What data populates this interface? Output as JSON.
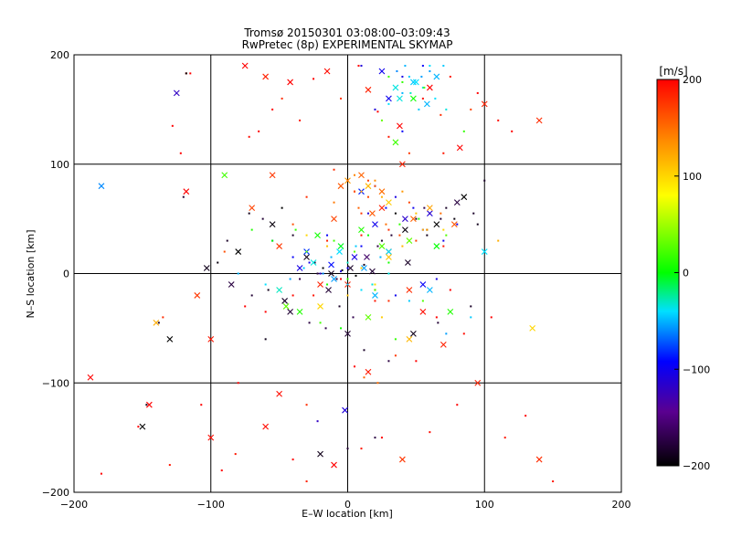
{
  "chart_data": {
    "type": "scatter",
    "title": "Tromsø 20150301 03:08:00–03:09:43",
    "subtitle": "RwPretec (8p) EXPERIMENTAL SKYMAP",
    "xlabel": "E–W location [km]",
    "ylabel": "N–S location [km]",
    "xlim": [
      -200,
      200
    ],
    "ylim": [
      -200,
      200
    ],
    "xticks": [
      "−200",
      "−100",
      "0",
      "100",
      "200"
    ],
    "yticks": [
      "−200",
      "−100",
      "0",
      "100",
      "200"
    ],
    "grid": true,
    "colorbar": {
      "label": "[m/s]",
      "range": [
        -200,
        200
      ],
      "ticks": [
        "200",
        "100",
        "0",
        "−100",
        "−200"
      ],
      "colormap": "rainbow: black(-200) → purple → blue(-100) → cyan → green(0) → yellow(100) → orange → red(200)",
      "stops": [
        "#000000",
        "#5a0090",
        "#0000ff",
        "#00e0ff",
        "#00ff00",
        "#ffff00",
        "#ff8c00",
        "#ff0000"
      ]
    },
    "markers": {
      "cross": "larger detections (x)",
      "dot": "small detections"
    },
    "series": [
      {
        "x": [
          -188,
          -180,
          -153,
          -145,
          -130,
          -122,
          -118,
          -115,
          -107,
          -100,
          -92,
          -82,
          -75,
          -72,
          -65,
          -60,
          -55,
          -48,
          -42,
          -35,
          -25,
          -15,
          -5,
          8,
          15,
          22,
          30,
          38,
          45,
          55,
          60,
          68,
          75,
          82,
          90,
          95,
          100,
          110,
          120,
          140,
          -128,
          -118,
          -60,
          -40,
          -30,
          -10,
          10,
          25,
          40,
          60,
          80,
          95,
          115,
          130,
          140,
          150,
          -80,
          -50,
          -30,
          5,
          15,
          35,
          50,
          70,
          105,
          -135,
          -100,
          -75,
          -40,
          -20,
          -5,
          20,
          45,
          65,
          85,
          -110,
          -60,
          -25,
          0,
          20,
          30,
          55,
          75,
          -90,
          -50,
          -15,
          10,
          30,
          50,
          70,
          -70,
          -30,
          5,
          25,
          45,
          60,
          -55,
          -10,
          15,
          40,
          70,
          -40,
          -10,
          10,
          30
        ],
        "y": [
          -95,
          -183,
          -140,
          -120,
          -175,
          110,
          75,
          183,
          -120,
          -150,
          -180,
          -165,
          190,
          125,
          130,
          180,
          150,
          160,
          175,
          140,
          178,
          185,
          160,
          190,
          168,
          148,
          125,
          135,
          110,
          160,
          170,
          145,
          180,
          115,
          150,
          165,
          155,
          140,
          130,
          140,
          135,
          183,
          -140,
          -170,
          -190,
          -175,
          -160,
          -150,
          -170,
          -145,
          -120,
          -100,
          -150,
          -130,
          -170,
          -190,
          -100,
          -110,
          -120,
          -85,
          -90,
          -75,
          -80,
          -65,
          -40,
          -40,
          -60,
          -30,
          -20,
          -10,
          -5,
          -25,
          -15,
          -40,
          -55,
          -20,
          -35,
          -20,
          -10,
          -15,
          -25,
          -35,
          -15,
          20,
          25,
          30,
          35,
          20,
          30,
          25,
          60,
          70,
          75,
          60,
          65,
          55,
          90,
          95,
          85,
          100,
          110,
          45,
          50,
          55,
          40
        ],
        "v": [
          200,
          200,
          200,
          200,
          190,
          200,
          200,
          200,
          200,
          195,
          200,
          190,
          200,
          195,
          200,
          185,
          200,
          180,
          200,
          190,
          200,
          195,
          175,
          200,
          185,
          200,
          190,
          200,
          175,
          195,
          200,
          180,
          190,
          200,
          170,
          200,
          185,
          195,
          200,
          180,
          200,
          200,
          195,
          200,
          185,
          200,
          190,
          200,
          175,
          195,
          200,
          185,
          190,
          200,
          180,
          190,
          200,
          195,
          180,
          200,
          190,
          175,
          200,
          185,
          200,
          180,
          190,
          200,
          195,
          185,
          200,
          190,
          180,
          200,
          195,
          175,
          200,
          190,
          185,
          200,
          180,
          195,
          200,
          165,
          175,
          185,
          190,
          180,
          170,
          190,
          170,
          180,
          175,
          185,
          170,
          180,
          175,
          180,
          170,
          185,
          190,
          165,
          170,
          175,
          180
        ],
        "marker": "mixed"
      },
      {
        "x": [
          -150,
          -147,
          -138,
          -130,
          -120,
          -118,
          -103,
          -95,
          -88,
          -80,
          -72,
          -62,
          -55,
          -48,
          -40,
          -30,
          -24,
          -18,
          -12,
          -8,
          -4,
          2,
          6,
          12,
          18,
          25,
          35,
          42,
          50,
          58,
          65,
          72,
          78,
          85,
          95,
          100,
          -85,
          -70,
          -58,
          -46,
          -35,
          -22,
          -14,
          -6,
          4,
          14,
          22,
          32,
          44,
          56,
          68,
          80,
          92,
          -60,
          -42,
          -28,
          -16,
          0,
          12,
          30,
          48,
          66,
          90,
          -20,
          0,
          20
        ],
        "y": [
          -140,
          -120,
          -45,
          -60,
          70,
          183,
          5,
          10,
          30,
          20,
          55,
          50,
          45,
          60,
          35,
          15,
          10,
          5,
          0,
          -5,
          3,
          5,
          -2,
          8,
          2,
          30,
          55,
          40,
          50,
          35,
          45,
          60,
          50,
          70,
          45,
          85,
          -10,
          -20,
          -15,
          -25,
          -5,
          0,
          -15,
          -30,
          -40,
          15,
          25,
          35,
          10,
          60,
          50,
          65,
          55,
          -60,
          -35,
          -45,
          -50,
          -55,
          -70,
          -80,
          -55,
          -45,
          -30,
          -165,
          -160,
          -150
        ],
        "v": [
          -200,
          -190,
          -185,
          -200,
          -180,
          -200,
          -190,
          -195,
          -185,
          -200,
          -190,
          -180,
          -195,
          -200,
          -185,
          -190,
          -180,
          -200,
          -190,
          -175,
          -195,
          -185,
          -200,
          -190,
          -180,
          -185,
          -200,
          -195,
          -185,
          -190,
          -200,
          -185,
          -195,
          -200,
          -190,
          -185,
          -175,
          -180,
          -190,
          -185,
          -170,
          -175,
          -180,
          -185,
          -170,
          -160,
          -175,
          -180,
          -185,
          -170,
          -180,
          -175,
          -185,
          -190,
          -180,
          -175,
          -170,
          -180,
          -185,
          -175,
          -190,
          -180,
          -185,
          -190,
          -180,
          -175
        ],
        "marker": "mixed"
      },
      {
        "x": [
          -125,
          -55,
          -40,
          -35,
          -28,
          -20,
          -12,
          -5,
          0,
          5,
          10,
          15,
          20,
          28,
          35,
          42,
          48,
          55,
          60,
          70,
          80,
          -30,
          -15,
          10,
          25,
          40,
          55,
          10,
          20,
          35,
          55,
          65,
          20,
          30,
          40,
          -22,
          -2
        ],
        "y": [
          165,
          30,
          15,
          5,
          10,
          0,
          8,
          2,
          5,
          15,
          25,
          55,
          45,
          60,
          70,
          50,
          60,
          40,
          55,
          30,
          45,
          20,
          35,
          190,
          185,
          180,
          190,
          75,
          80,
          -20,
          -10,
          -5,
          150,
          160,
          130,
          -135,
          -125
        ],
        "v": [
          -120,
          -110,
          -95,
          -105,
          -100,
          -115,
          -90,
          -110,
          -100,
          -105,
          -95,
          -110,
          -100,
          -90,
          -105,
          -115,
          -100,
          -95,
          -110,
          -100,
          -105,
          -80,
          -95,
          -110,
          -100,
          -105,
          -95,
          -85,
          -90,
          -100,
          -95,
          -105,
          -110,
          -100,
          -95,
          -120,
          -110
        ],
        "marker": "mixed"
      },
      {
        "x": [
          -180,
          -80,
          -60,
          -50,
          -42,
          -32,
          -25,
          -18,
          -12,
          -6,
          0,
          6,
          12,
          18,
          24,
          30,
          36,
          42,
          48,
          54,
          60,
          35,
          40,
          45,
          50,
          55,
          60,
          65,
          70,
          30,
          38,
          46,
          52,
          58,
          64,
          72,
          -10,
          0,
          10,
          20,
          30,
          45,
          60,
          72,
          90,
          100
        ],
        "y": [
          80,
          0,
          -10,
          -15,
          -5,
          5,
          10,
          0,
          15,
          20,
          10,
          25,
          5,
          -10,
          15,
          20,
          185,
          190,
          175,
          180,
          190,
          170,
          165,
          180,
          175,
          170,
          185,
          180,
          190,
          155,
          160,
          165,
          150,
          155,
          160,
          150,
          -5,
          -10,
          -15,
          -20,
          0,
          -25,
          -15,
          -55,
          -40,
          20
        ],
        "v": [
          -60,
          -50,
          -40,
          -30,
          -55,
          -45,
          -35,
          -60,
          -50,
          -40,
          -30,
          -45,
          -55,
          -35,
          -50,
          -40,
          -60,
          -50,
          -45,
          -55,
          -40,
          -35,
          -50,
          -45,
          -40,
          -35,
          -55,
          -50,
          -45,
          -40,
          -35,
          -30,
          -45,
          -50,
          -40,
          -35,
          -55,
          -45,
          -40,
          -50,
          -35,
          -45,
          -50,
          -55,
          -45,
          -40
        ],
        "marker": "mixed"
      },
      {
        "x": [
          -90,
          -70,
          -55,
          -45,
          -38,
          -30,
          -22,
          -15,
          -10,
          -5,
          0,
          5,
          10,
          15,
          20,
          25,
          30,
          38,
          45,
          52,
          58,
          65,
          72,
          85,
          -35,
          -20,
          -5,
          15,
          35,
          55,
          75,
          30,
          40,
          48,
          56,
          25,
          35
        ],
        "y": [
          90,
          40,
          30,
          -30,
          40,
          20,
          35,
          -10,
          30,
          25,
          -5,
          20,
          40,
          35,
          -15,
          25,
          10,
          45,
          30,
          50,
          40,
          25,
          35,
          130,
          -35,
          -45,
          -50,
          -40,
          -60,
          -25,
          -35,
          180,
          175,
          160,
          170,
          140,
          120
        ],
        "v": [
          20,
          10,
          0,
          30,
          15,
          25,
          5,
          10,
          20,
          -5,
          15,
          30,
          10,
          0,
          20,
          25,
          5,
          15,
          30,
          10,
          20,
          0,
          25,
          15,
          10,
          20,
          5,
          30,
          15,
          25,
          10,
          20,
          15,
          5,
          25,
          30,
          20
        ],
        "marker": "mixed"
      },
      {
        "x": [
          -140,
          -30,
          -15,
          0,
          5,
          10,
          15,
          20,
          25,
          30,
          40,
          50,
          60,
          70,
          110,
          135,
          10,
          20,
          30,
          40,
          55,
          -20,
          0,
          25,
          45
        ],
        "y": [
          -45,
          35,
          25,
          85,
          90,
          75,
          80,
          85,
          70,
          65,
          75,
          55,
          60,
          40,
          30,
          -50,
          5,
          -10,
          15,
          25,
          40,
          -30,
          -20,
          -40,
          -60
        ],
        "v": [
          120,
          100,
          110,
          130,
          140,
          125,
          115,
          135,
          120,
          105,
          130,
          110,
          125,
          100,
          120,
          100,
          105,
          95,
          110,
          115,
          120,
          100,
          110,
          105,
          115
        ],
        "marker": "mixed"
      },
      {
        "x": [
          -5,
          0,
          5,
          10,
          15,
          20,
          25,
          -10,
          8,
          18,
          28,
          38,
          48,
          58,
          68,
          78,
          12,
          22
        ],
        "y": [
          80,
          85,
          75,
          90,
          70,
          80,
          75,
          65,
          60,
          55,
          45,
          35,
          50,
          40,
          55,
          45,
          -95,
          -100
        ],
        "v": [
          160,
          150,
          165,
          155,
          170,
          160,
          150,
          145,
          155,
          160,
          150,
          165,
          155,
          145,
          150,
          160,
          155,
          150
        ],
        "marker": "mixed"
      }
    ]
  }
}
